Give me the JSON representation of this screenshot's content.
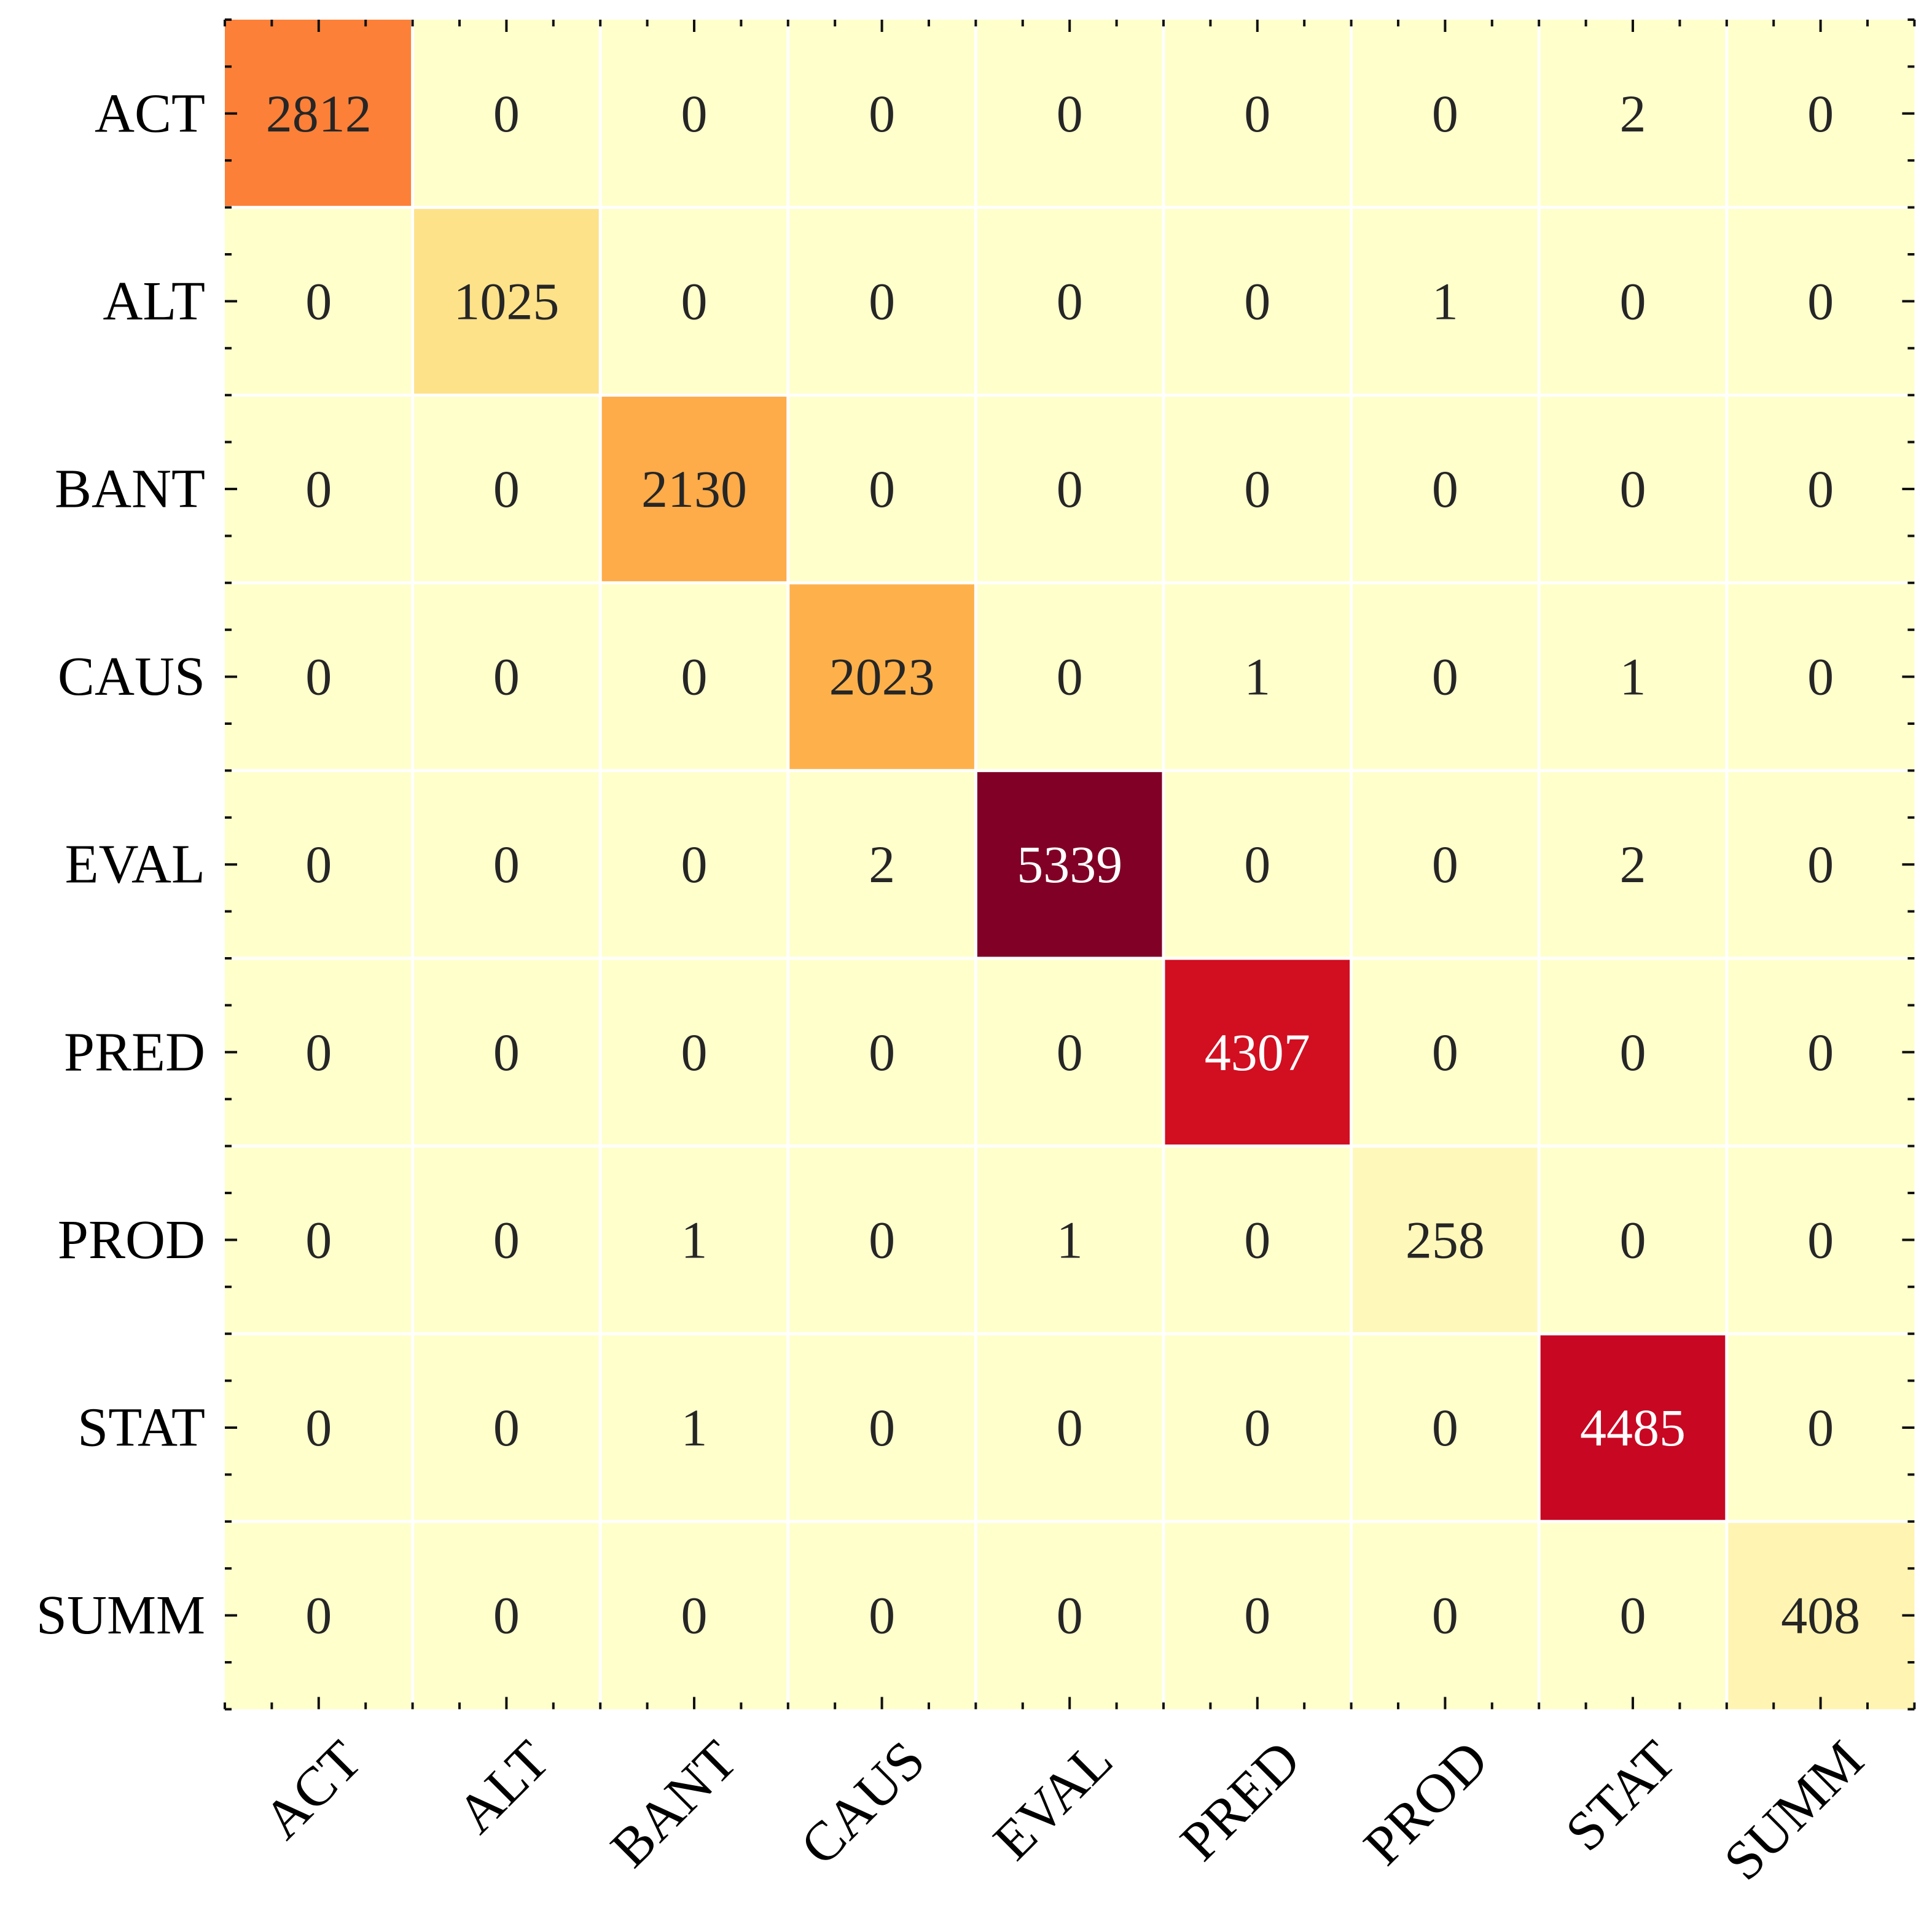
{
  "chart_data": {
    "type": "heatmap",
    "title": "",
    "xlabel": "",
    "ylabel": "",
    "row_labels": [
      "ACT",
      "ALT",
      "BANT",
      "CAUS",
      "EVAL",
      "PRED",
      "PROD",
      "STAT",
      "SUMM"
    ],
    "col_labels": [
      "ACT",
      "ALT",
      "BANT",
      "CAUS",
      "EVAL",
      "PRED",
      "PROD",
      "STAT",
      "SUMM"
    ],
    "values": [
      [
        2812,
        0,
        0,
        0,
        0,
        0,
        0,
        2,
        0
      ],
      [
        0,
        1025,
        0,
        0,
        0,
        0,
        1,
        0,
        0
      ],
      [
        0,
        0,
        2130,
        0,
        0,
        0,
        0,
        0,
        0
      ],
      [
        0,
        0,
        0,
        2023,
        0,
        1,
        0,
        1,
        0
      ],
      [
        0,
        0,
        0,
        2,
        5339,
        0,
        0,
        2,
        0
      ],
      [
        0,
        0,
        0,
        0,
        0,
        4307,
        0,
        0,
        0
      ],
      [
        0,
        0,
        1,
        0,
        1,
        0,
        258,
        0,
        0
      ],
      [
        0,
        0,
        1,
        0,
        0,
        0,
        0,
        4485,
        0
      ],
      [
        0,
        0,
        0,
        0,
        0,
        0,
        0,
        0,
        408
      ]
    ],
    "colormap": "YlOrRd",
    "value_range": [
      0,
      5339
    ],
    "colorbar": false,
    "grid": true,
    "colors": {
      "low": "#ffffcc",
      "high": "#800026",
      "gridlines": "#ffffff",
      "text_dark": "#262626",
      "text_light": "#ffffff"
    }
  }
}
